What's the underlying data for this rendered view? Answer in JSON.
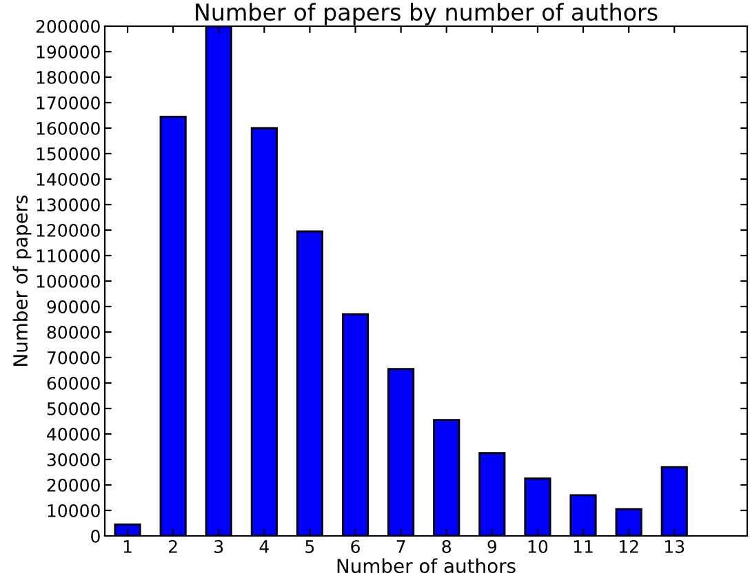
{
  "chart_data": {
    "type": "bar",
    "title": "Number of papers by number of authors",
    "xlabel": "Number of authors",
    "ylabel": "Number of papers",
    "x": [
      1,
      2,
      3,
      4,
      5,
      6,
      7,
      8,
      9,
      10,
      11,
      12,
      13
    ],
    "values": [
      4500,
      164500,
      200000,
      160000,
      119500,
      87000,
      65500,
      45500,
      32500,
      22500,
      16000,
      10500,
      27000
    ],
    "color": "#0000ff",
    "xlim": [
      0.5,
      14.6
    ],
    "xticks": [
      1,
      2,
      3,
      4,
      5,
      6,
      7,
      8,
      9,
      10,
      11,
      12,
      13
    ],
    "ylim": [
      0,
      200000
    ],
    "yticks": [
      0,
      10000,
      20000,
      30000,
      40000,
      50000,
      60000,
      70000,
      80000,
      90000,
      100000,
      110000,
      120000,
      130000,
      140000,
      150000,
      160000,
      170000,
      180000,
      190000,
      200000
    ],
    "grid": false
  }
}
